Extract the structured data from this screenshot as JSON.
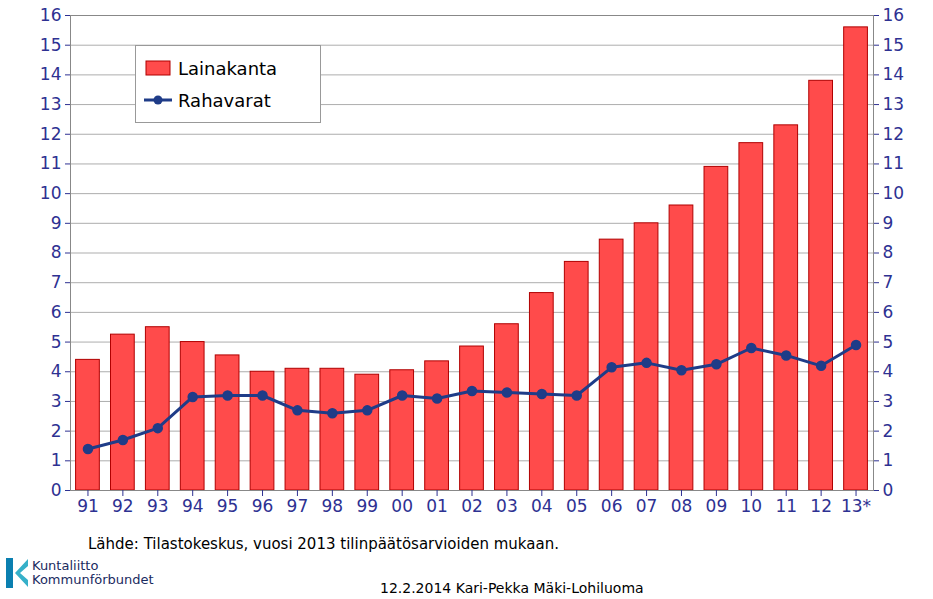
{
  "chart_data": {
    "type": "bar",
    "categories": [
      "91",
      "92",
      "93",
      "94",
      "95",
      "96",
      "97",
      "98",
      "99",
      "00",
      "01",
      "02",
      "03",
      "04",
      "05",
      "06",
      "07",
      "08",
      "09",
      "10",
      "11",
      "12",
      "13*"
    ],
    "series": [
      {
        "name": "Lainakanta",
        "type": "bar",
        "color": "#ff4b4b",
        "values": [
          4.4,
          5.25,
          5.5,
          5.0,
          4.55,
          4.0,
          4.1,
          4.1,
          3.9,
          4.05,
          4.35,
          4.85,
          5.6,
          6.65,
          7.7,
          8.45,
          9.0,
          9.6,
          10.9,
          11.7,
          12.3,
          13.8,
          15.6
        ]
      },
      {
        "name": "Rahavarat",
        "type": "line",
        "color": "#1f3c88",
        "marker": "circle",
        "values": [
          1.4,
          1.7,
          2.1,
          3.15,
          3.2,
          3.2,
          2.7,
          2.6,
          2.7,
          3.2,
          3.1,
          3.35,
          3.3,
          3.25,
          3.2,
          4.15,
          4.3,
          4.05,
          4.25,
          4.8,
          4.55,
          4.2,
          4.9
        ]
      }
    ],
    "ylim": [
      0,
      16
    ],
    "yticks": [
      0,
      1,
      2,
      3,
      4,
      5,
      6,
      7,
      8,
      9,
      10,
      11,
      12,
      13,
      14,
      15,
      16
    ],
    "y2lim": [
      0,
      16
    ],
    "y2ticks": [
      0,
      1,
      2,
      3,
      4,
      5,
      6,
      7,
      8,
      9,
      10,
      11,
      12,
      13,
      14,
      15,
      16
    ],
    "grid": true,
    "legend": "top-left",
    "caption": "Lähde: Tilastokeskus, vuosi 2013 tilinpäätösarvioiden mukaan.",
    "logo_text": [
      "Kuntaliitto",
      "Kommunförbundet"
    ],
    "footer": "12.2.2014 Kari-Pekka Mäki-Lohiluoma"
  }
}
